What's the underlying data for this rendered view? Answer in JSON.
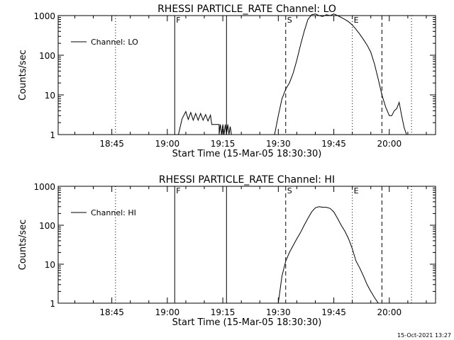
{
  "footer": {
    "timestamp": "15-Oct-2021 13:27"
  },
  "chart_data": [
    {
      "type": "line",
      "title": "RHESSI PARTICLE_RATE Channel: LO",
      "xlabel": "Start Time (15-Mar-05 18:30:30)",
      "ylabel": "Counts/sec",
      "yscale": "log",
      "ylim": [
        1,
        1000
      ],
      "xlim": [
        "18:30:30",
        "20:12:30"
      ],
      "x_ticks": [
        "18:45",
        "19:00",
        "19:15",
        "19:30",
        "19:45",
        "20:00"
      ],
      "y_ticks": [
        "1",
        "10",
        "100",
        "1000"
      ],
      "legend": {
        "position": "top-left",
        "entries": [
          "Channel: LO"
        ]
      },
      "markers": [
        {
          "x": "18:46",
          "style": "dotted",
          "label": ""
        },
        {
          "x": "19:02",
          "style": "solid",
          "label": "F"
        },
        {
          "x": "19:16",
          "style": "solid",
          "label": ""
        },
        {
          "x": "19:32",
          "style": "dashed",
          "label": "S"
        },
        {
          "x": "19:50",
          "style": "dotted",
          "label": "E"
        },
        {
          "x": "19:58",
          "style": "dashed",
          "label": ""
        },
        {
          "x": "20:06",
          "style": "dotted",
          "label": ""
        }
      ],
      "series": [
        {
          "name": "Channel: LO",
          "segments": [
            [
              [
                "19:03:00",
                1
              ],
              [
                "19:04:00",
                2.5
              ],
              [
                "19:05:00",
                3.8
              ],
              [
                "19:05:40",
                2.4
              ],
              [
                "19:06:20",
                3.6
              ],
              [
                "19:07:00",
                2.3
              ],
              [
                "19:07:40",
                3.4
              ],
              [
                "19:08:20",
                2.3
              ],
              [
                "19:09:00",
                3.4
              ],
              [
                "19:09:40",
                2.3
              ],
              [
                "19:10:20",
                3.2
              ],
              [
                "19:11:00",
                2.2
              ],
              [
                "19:11:40",
                3.1
              ],
              [
                "19:12:00",
                1.8
              ],
              [
                "19:14:00",
                1.8
              ],
              [
                "19:14:00",
                1
              ],
              [
                "19:14:20",
                1.8
              ],
              [
                "19:14:40",
                1
              ],
              [
                "19:15:00",
                1.8
              ],
              [
                "19:15:20",
                1
              ],
              [
                "19:15:40",
                1.8
              ],
              [
                "19:16:00",
                1
              ],
              [
                "19:16:20",
                1.8
              ],
              [
                "19:16:40",
                1
              ],
              [
                "19:17:00",
                1.6
              ],
              [
                "19:17:20",
                1
              ]
            ],
            [
              [
                "19:29:00",
                1
              ],
              [
                "19:30:00",
                3
              ],
              [
                "19:31:00",
                8
              ],
              [
                "19:32:00",
                14
              ],
              [
                "19:33:00",
                20
              ],
              [
                "19:34:00",
                35
              ],
              [
                "19:35:00",
                75
              ],
              [
                "19:36:00",
                180
              ],
              [
                "19:37:00",
                400
              ],
              [
                "19:38:00",
                800
              ],
              [
                "19:39:00",
                1050
              ],
              [
                "19:40:00",
                1100
              ],
              [
                "19:41:00",
                1000
              ],
              [
                "19:42:00",
                950
              ],
              [
                "19:43:00",
                1050
              ],
              [
                "19:44:00",
                1000
              ],
              [
                "19:45:00",
                1100
              ],
              [
                "19:46:00",
                1000
              ],
              [
                "19:47:00",
                900
              ],
              [
                "19:48:00",
                800
              ],
              [
                "19:49:00",
                700
              ],
              [
                "19:50:00",
                580
              ],
              [
                "19:51:00",
                450
              ],
              [
                "19:52:00",
                340
              ],
              [
                "19:53:00",
                250
              ],
              [
                "19:54:00",
                180
              ],
              [
                "19:55:00",
                120
              ],
              [
                "19:56:00",
                60
              ],
              [
                "19:57:00",
                25
              ],
              [
                "19:58:00",
                10
              ],
              [
                "19:59:00",
                5
              ],
              [
                "20:00:00",
                3
              ],
              [
                "20:00:40",
                3
              ],
              [
                "20:01:20",
                4
              ],
              [
                "20:02:00",
                4.5
              ],
              [
                "20:02:40",
                6.5
              ],
              [
                "20:03:20",
                3
              ],
              [
                "20:04:00",
                1.5
              ],
              [
                "20:04:40",
                1
              ]
            ]
          ]
        }
      ]
    },
    {
      "type": "line",
      "title": "RHESSI PARTICLE_RATE Channel: HI",
      "xlabel": "Start Time (15-Mar-05 18:30:30)",
      "ylabel": "Counts/sec",
      "yscale": "log",
      "ylim": [
        1,
        1000
      ],
      "xlim": [
        "18:30:30",
        "20:12:30"
      ],
      "x_ticks": [
        "18:45",
        "19:00",
        "19:15",
        "19:30",
        "19:45",
        "20:00"
      ],
      "y_ticks": [
        "1",
        "10",
        "100",
        "1000"
      ],
      "legend": {
        "position": "top-left",
        "entries": [
          "Channel: HI"
        ]
      },
      "markers": [
        {
          "x": "18:46",
          "style": "dotted",
          "label": ""
        },
        {
          "x": "19:02",
          "style": "solid",
          "label": "F"
        },
        {
          "x": "19:16",
          "style": "solid",
          "label": ""
        },
        {
          "x": "19:32",
          "style": "dashed",
          "label": "S"
        },
        {
          "x": "19:50",
          "style": "dotted",
          "label": "E"
        },
        {
          "x": "19:58",
          "style": "dashed",
          "label": ""
        },
        {
          "x": "20:06",
          "style": "dotted",
          "label": ""
        }
      ],
      "series": [
        {
          "name": "Channel: HI",
          "segments": [
            [
              [
                "19:30:00",
                1
              ],
              [
                "19:31:00",
                5
              ],
              [
                "19:32:00",
                12
              ],
              [
                "19:33:00",
                20
              ],
              [
                "19:34:00",
                30
              ],
              [
                "19:35:00",
                45
              ],
              [
                "19:36:00",
                65
              ],
              [
                "19:37:00",
                100
              ],
              [
                "19:38:00",
                150
              ],
              [
                "19:39:00",
                220
              ],
              [
                "19:40:00",
                280
              ],
              [
                "19:41:00",
                300
              ],
              [
                "19:42:00",
                290
              ],
              [
                "19:43:00",
                290
              ],
              [
                "19:44:00",
                270
              ],
              [
                "19:45:00",
                220
              ],
              [
                "19:46:00",
                150
              ],
              [
                "19:47:00",
                100
              ],
              [
                "19:48:00",
                70
              ],
              [
                "19:49:00",
                45
              ],
              [
                "19:50:00",
                25
              ],
              [
                "19:51:00",
                12
              ],
              [
                "19:52:00",
                8
              ],
              [
                "19:53:00",
                5
              ],
              [
                "19:54:00",
                3
              ],
              [
                "19:55:00",
                2
              ],
              [
                "19:56:00",
                1.4
              ],
              [
                "19:57:00",
                1
              ]
            ]
          ]
        }
      ]
    }
  ]
}
